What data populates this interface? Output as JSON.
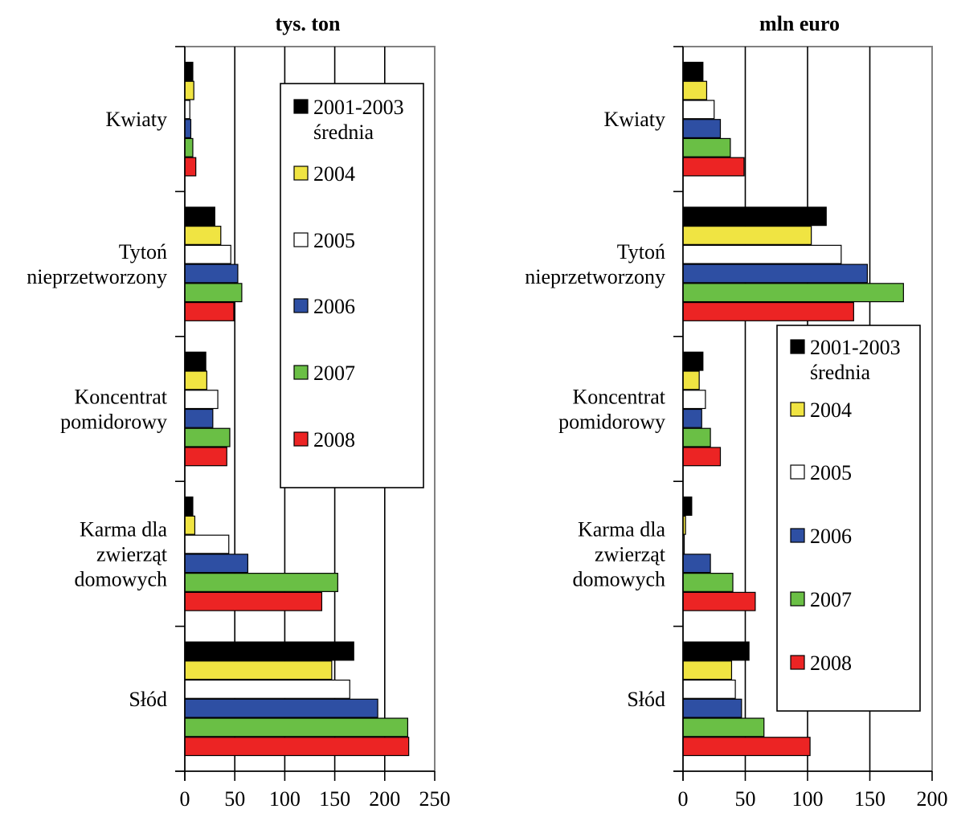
{
  "chart_data": [
    {
      "type": "bar",
      "orientation": "horizontal",
      "title": "tys. ton",
      "categories": [
        "Kwiaty",
        "Tytoń nieprzetworzony",
        "Koncentrat pomidorowy",
        "Karma dla zwierząt domowych",
        "Słód"
      ],
      "category_lines": [
        [
          "Kwiaty"
        ],
        [
          "Tytoń",
          "nieprzetworzony"
        ],
        [
          "Koncentrat",
          "pomidorowy"
        ],
        [
          "Karma dla",
          "zwierząt",
          "domowych"
        ],
        [
          "Słód"
        ]
      ],
      "xlim": [
        0,
        250
      ],
      "xticks": [
        0,
        50,
        100,
        150,
        200,
        250
      ],
      "grid": true,
      "legend_position": "top-right",
      "series": [
        {
          "name": "2001-2003 średnia",
          "color": "#000000",
          "values": [
            8,
            30,
            21,
            8,
            169
          ]
        },
        {
          "name": "2004",
          "color": "#f0e442",
          "values": [
            9,
            36,
            22,
            10,
            147
          ]
        },
        {
          "name": "2005",
          "color": "#ffffff",
          "values": [
            5,
            46,
            33,
            44,
            165
          ]
        },
        {
          "name": "2006",
          "color": "#2e4fa3",
          "values": [
            6,
            53,
            28,
            63,
            193
          ]
        },
        {
          "name": "2007",
          "color": "#6abf45",
          "values": [
            8,
            57,
            45,
            153,
            223
          ]
        },
        {
          "name": "2008",
          "color": "#ec2424",
          "values": [
            11,
            49,
            42,
            137,
            224
          ]
        }
      ]
    },
    {
      "type": "bar",
      "orientation": "horizontal",
      "title": "mln euro",
      "categories": [
        "Kwiaty",
        "Tytoń nieprzetworzony",
        "Koncentrat pomidorowy",
        "Karma dla zwierząt domowych",
        "Słód"
      ],
      "category_lines": [
        [
          "Kwiaty"
        ],
        [
          "Tytoń",
          "nieprzetworzony"
        ],
        [
          "Koncentrat",
          "pomidorowy"
        ],
        [
          "Karma dla",
          "zwierząt",
          "domowych"
        ],
        [
          "Słód"
        ]
      ],
      "xlim": [
        0,
        200
      ],
      "xticks": [
        0,
        50,
        100,
        150,
        200
      ],
      "grid": true,
      "legend_position": "bottom-right",
      "series": [
        {
          "name": "2001-2003 średnia",
          "color": "#000000",
          "values": [
            16,
            115,
            16,
            7,
            53
          ]
        },
        {
          "name": "2004",
          "color": "#f0e442",
          "values": [
            19,
            103,
            13,
            2,
            39
          ]
        },
        {
          "name": "2005",
          "color": "#ffffff",
          "values": [
            25,
            127,
            18,
            1,
            42
          ]
        },
        {
          "name": "2006",
          "color": "#2e4fa3",
          "values": [
            30,
            148,
            15,
            22,
            47
          ]
        },
        {
          "name": "2007",
          "color": "#6abf45",
          "values": [
            38,
            177,
            22,
            40,
            65
          ]
        },
        {
          "name": "2008",
          "color": "#ec2424",
          "values": [
            49,
            137,
            30,
            58,
            102
          ]
        }
      ]
    }
  ]
}
